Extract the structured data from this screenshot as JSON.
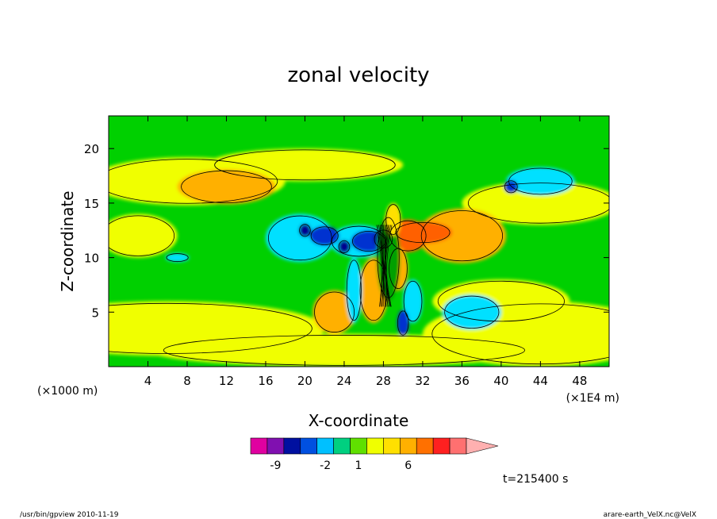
{
  "chart_data": {
    "type": "heatmap",
    "title": "zonal velocity",
    "xlabel": "X-coordinate",
    "ylabel": "Z-coordinate",
    "x_unit_left": "(×1000 m)",
    "x_unit_right": "(×1E4 m)",
    "xlim": [
      0,
      51
    ],
    "ylim": [
      0,
      23
    ],
    "xticks": [
      4,
      8,
      12,
      16,
      20,
      24,
      28,
      32,
      36,
      40,
      44,
      48
    ],
    "yticks": [
      5,
      10,
      15,
      20
    ],
    "colorbar": {
      "colors": [
        "#e000a0",
        "#8010b0",
        "#0010a0",
        "#0050e0",
        "#00c0ff",
        "#00d080",
        "#60e000",
        "#f0ff00",
        "#ffe000",
        "#ffb000",
        "#ff7000",
        "#ff2020",
        "#ff7070",
        "#ffb0b0"
      ],
      "labels": [
        "-9",
        "-2",
        "1",
        "6"
      ],
      "label_positions": [
        1.5,
        4.5,
        6.5,
        9.5
      ]
    },
    "time_label": "t=215400 s"
  },
  "footer": {
    "left": "/usr/bin/gpview   2010-11-19",
    "right": "arare-earth_VelX.nc@VelX"
  }
}
